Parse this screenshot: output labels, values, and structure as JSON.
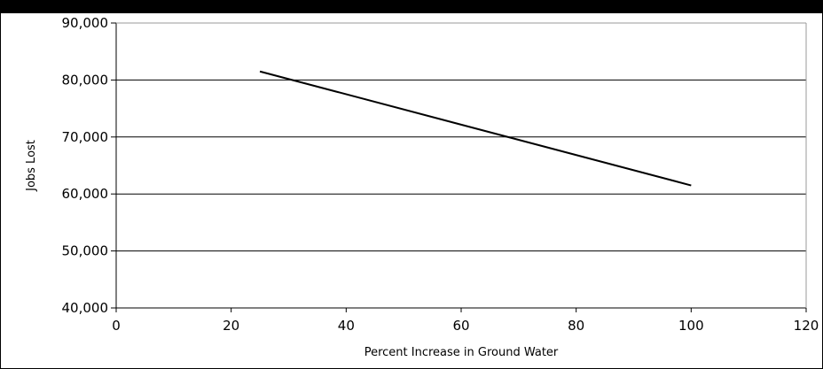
{
  "chart_data": {
    "type": "line",
    "title": "",
    "xlabel": "Percent Increase in Ground Water",
    "ylabel": "Jobs Lost",
    "xlim": [
      0,
      120
    ],
    "ylim": [
      40000,
      90000
    ],
    "x_ticks": [
      0,
      20,
      40,
      60,
      80,
      100,
      120
    ],
    "x_tick_labels": [
      "0",
      "20",
      "40",
      "60",
      "80",
      "100",
      "120"
    ],
    "y_ticks": [
      40000,
      50000,
      60000,
      70000,
      80000,
      90000
    ],
    "y_tick_labels": [
      "40,000",
      "50,000",
      "60,000",
      "70,000",
      "80,000",
      "90,000"
    ],
    "grid": "horizontal",
    "legend": "none",
    "series": [
      {
        "x": [
          25,
          100
        ],
        "y": [
          81500,
          61500
        ]
      }
    ],
    "colors": {
      "line": "#000000",
      "grid": "#000000",
      "frame": "#000000",
      "header": "#000000"
    }
  }
}
